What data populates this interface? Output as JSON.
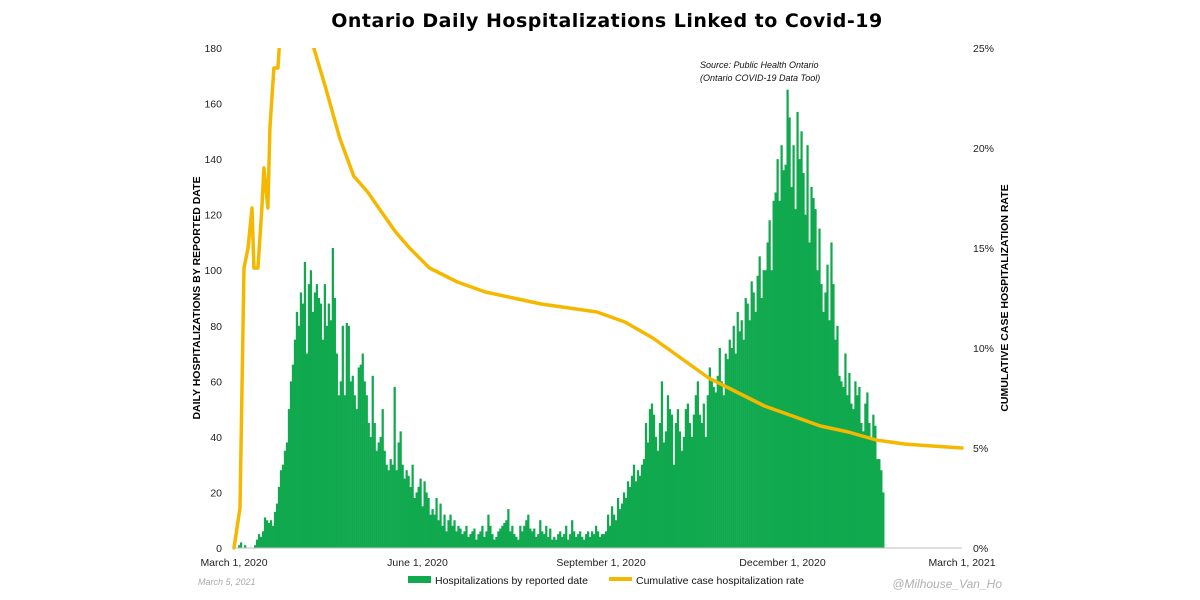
{
  "chart_data": {
    "type": "bar",
    "title": "Ontario Daily Hospitalizations Linked to Covid-19",
    "source_line1": "Source: Public Health Ontario",
    "source_line2": "(Ontario COVID-19 Data Tool)",
    "ylabel_left": "DAILY HOSPITALIZATIONS BY REPORTED DATE",
    "ylabel_right": "CUMULATIVE CASE HOSPITALIZATION RATE",
    "ylim_left": [
      0,
      180
    ],
    "ylim_right": [
      0,
      0.25
    ],
    "y_ticks_left": [
      "0",
      "20",
      "40",
      "60",
      "80",
      "100",
      "120",
      "140",
      "160",
      "180"
    ],
    "y_ticks_right": [
      "0%",
      "5%",
      "10%",
      "15%",
      "20%",
      "25%"
    ],
    "x_range": [
      "2020-03-01",
      "2021-03-01"
    ],
    "x_ticks": [
      {
        "date": "2020-03-01",
        "label": "March 1, 2020"
      },
      {
        "date": "2020-06-01",
        "label": "June 1, 2020"
      },
      {
        "date": "2020-09-01",
        "label": "September 1, 2020"
      },
      {
        "date": "2020-12-01",
        "label": "December 1, 2020"
      },
      {
        "date": "2021-03-01",
        "label": "March 1, 2021"
      }
    ],
    "grid": false,
    "legend_position": "bottom",
    "series": [
      {
        "name": "Hospitalizations by reported date",
        "type": "bar",
        "axis": "left",
        "color": "#10A94E",
        "x_start": "2020-03-01",
        "interval": "day",
        "values": [
          0,
          0,
          1,
          2,
          0,
          1,
          0,
          0,
          0,
          0,
          1,
          3,
          5,
          4,
          6,
          11,
          10,
          9,
          10,
          8,
          13,
          16,
          22,
          28,
          30,
          35,
          38,
          50,
          60,
          66,
          75,
          85,
          80,
          92,
          88,
          103,
          70,
          95,
          100,
          85,
          92,
          95,
          90,
          88,
          75,
          95,
          80,
          88,
          82,
          108,
          90,
          70,
          55,
          60,
          80,
          55,
          81,
          80,
          60,
          62,
          55,
          50,
          65,
          66,
          70,
          60,
          55,
          45,
          40,
          62,
          45,
          35,
          38,
          40,
          50,
          35,
          30,
          28,
          32,
          30,
          58,
          28,
          38,
          42,
          30,
          25,
          28,
          26,
          22,
          30,
          18,
          20,
          22,
          25,
          15,
          24,
          20,
          18,
          12,
          14,
          12,
          18,
          10,
          16,
          8,
          12,
          6,
          10,
          12,
          8,
          10,
          6,
          8,
          7,
          5,
          6,
          8,
          4,
          5,
          6,
          7,
          3,
          5,
          6,
          8,
          4,
          6,
          12,
          8,
          5,
          3,
          4,
          6,
          7,
          8,
          9,
          10,
          14,
          6,
          8,
          5,
          4,
          3,
          8,
          6,
          8,
          10,
          12,
          7,
          6,
          7,
          4,
          5,
          10,
          6,
          5,
          8,
          4,
          7,
          3,
          4,
          3,
          5,
          6,
          4,
          5,
          8,
          3,
          5,
          10,
          6,
          4,
          5,
          6,
          4,
          3,
          5,
          6,
          4,
          6,
          5,
          8,
          6,
          4,
          5,
          5,
          6,
          12,
          8,
          15,
          12,
          10,
          18,
          14,
          16,
          20,
          18,
          24,
          22,
          26,
          30,
          24,
          28,
          26,
          30,
          32,
          45,
          38,
          50,
          52,
          48,
          40,
          35,
          45,
          60,
          38,
          42,
          55,
          50,
          48,
          30,
          45,
          50,
          42,
          35,
          40,
          50,
          52,
          45,
          40,
          48,
          55,
          60,
          48,
          45,
          52,
          40,
          55,
          65,
          60,
          58,
          56,
          62,
          72,
          60,
          55,
          70,
          68,
          75,
          72,
          80,
          70,
          85,
          78,
          82,
          75,
          90,
          88,
          82,
          96,
          92,
          85,
          98,
          105,
          90,
          100,
          100,
          110,
          118,
          100,
          125,
          128,
          140,
          125,
          145,
          136,
          138,
          165,
          155,
          130,
          145,
          122,
          157,
          140,
          150,
          135,
          120,
          145,
          110,
          130,
          126,
          122,
          100,
          115,
          95,
          85,
          92,
          102,
          82,
          110,
          95,
          75,
          80,
          62,
          60,
          58,
          70,
          55,
          63,
          52,
          50,
          60,
          55,
          58,
          45,
          42,
          52,
          56,
          45,
          40,
          48,
          44,
          32,
          32,
          28,
          20
        ]
      },
      {
        "name": "Cumulative case hospitalization rate",
        "type": "line",
        "axis": "right",
        "color": "#F5B800",
        "points": [
          {
            "x": "2020-03-01",
            "y": 0.0
          },
          {
            "x": "2020-03-04",
            "y": 0.02
          },
          {
            "x": "2020-03-05",
            "y": 0.08
          },
          {
            "x": "2020-03-06",
            "y": 0.14
          },
          {
            "x": "2020-03-08",
            "y": 0.15
          },
          {
            "x": "2020-03-10",
            "y": 0.17
          },
          {
            "x": "2020-03-11",
            "y": 0.14
          },
          {
            "x": "2020-03-13",
            "y": 0.14
          },
          {
            "x": "2020-03-15",
            "y": 0.17
          },
          {
            "x": "2020-03-16",
            "y": 0.19
          },
          {
            "x": "2020-03-18",
            "y": 0.17
          },
          {
            "x": "2020-03-19",
            "y": 0.21
          },
          {
            "x": "2020-03-21",
            "y": 0.24
          },
          {
            "x": "2020-03-23",
            "y": 0.24
          },
          {
            "x": "2020-03-25",
            "y": 0.27
          },
          {
            "x": "2020-04-08",
            "y": 0.27
          },
          {
            "x": "2020-04-10",
            "y": 0.25
          },
          {
            "x": "2020-04-16",
            "y": 0.23
          },
          {
            "x": "2020-04-23",
            "y": 0.205
          },
          {
            "x": "2020-04-30",
            "y": 0.186
          },
          {
            "x": "2020-05-07",
            "y": 0.178
          },
          {
            "x": "2020-05-14",
            "y": 0.168
          },
          {
            "x": "2020-05-21",
            "y": 0.158
          },
          {
            "x": "2020-05-28",
            "y": 0.15
          },
          {
            "x": "2020-06-07",
            "y": 0.14
          },
          {
            "x": "2020-06-21",
            "y": 0.133
          },
          {
            "x": "2020-07-05",
            "y": 0.128
          },
          {
            "x": "2020-07-19",
            "y": 0.125
          },
          {
            "x": "2020-08-02",
            "y": 0.122
          },
          {
            "x": "2020-08-16",
            "y": 0.12
          },
          {
            "x": "2020-08-30",
            "y": 0.118
          },
          {
            "x": "2020-09-13",
            "y": 0.113
          },
          {
            "x": "2020-09-27",
            "y": 0.105
          },
          {
            "x": "2020-10-11",
            "y": 0.095
          },
          {
            "x": "2020-10-25",
            "y": 0.085
          },
          {
            "x": "2020-11-08",
            "y": 0.078
          },
          {
            "x": "2020-11-22",
            "y": 0.071
          },
          {
            "x": "2020-12-06",
            "y": 0.066
          },
          {
            "x": "2020-12-20",
            "y": 0.061
          },
          {
            "x": "2021-01-03",
            "y": 0.058
          },
          {
            "x": "2021-01-17",
            "y": 0.054
          },
          {
            "x": "2021-01-31",
            "y": 0.052
          },
          {
            "x": "2021-02-14",
            "y": 0.051
          },
          {
            "x": "2021-03-01",
            "y": 0.05
          }
        ]
      }
    ]
  },
  "footer": {
    "date": "March 5, 2021",
    "handle": "@Milhouse_Van_Ho"
  }
}
